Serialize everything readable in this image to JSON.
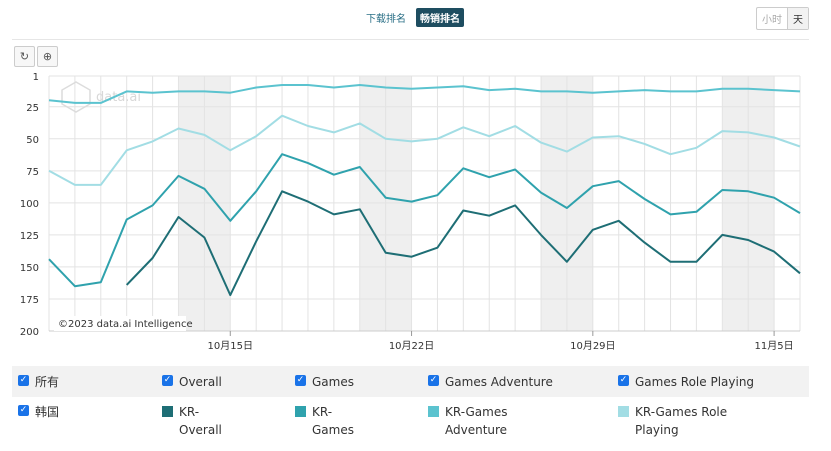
{
  "tabs": {
    "download": "下载排名",
    "revenue": "畅销排名"
  },
  "granularity": {
    "hour": "小时",
    "day": "天"
  },
  "toolbar": {
    "reset_icon": "reset-icon",
    "zoom_icon": "zoom-icon"
  },
  "copyright": "©2023 data.ai Intelligence",
  "watermark": "data.ai",
  "legend": {
    "all_label": "所有",
    "country_label": "韩国",
    "categories": [
      "Overall",
      "Games",
      "Games Adventure",
      "Games Role Playing"
    ],
    "series_labels": [
      [
        "KR-",
        "Overall"
      ],
      [
        "KR-",
        "Games"
      ],
      [
        "KR-Games",
        "Adventure"
      ],
      [
        "KR-Games Role",
        "Playing"
      ]
    ]
  },
  "chart_data": {
    "type": "line",
    "y_reversed": true,
    "ylim": [
      1,
      200
    ],
    "yticks": [
      1,
      25,
      50,
      75,
      100,
      125,
      150,
      175,
      200
    ],
    "x_labels": [
      "10月15日",
      "10月22日",
      "10月29日",
      "11月5日"
    ],
    "x_label_dates": [
      "2023-10-15",
      "2023-10-22",
      "2023-10-29",
      "2023-11-05"
    ],
    "x_start": "2023-10-08",
    "x_end": "2023-11-06",
    "weekend_bands": [
      [
        "2023-10-13",
        "2023-10-15"
      ],
      [
        "2023-10-20",
        "2023-10-22"
      ],
      [
        "2023-10-27",
        "2023-10-29"
      ],
      [
        "2023-11-03",
        "2023-11-05"
      ]
    ],
    "colors": [
      "#1e6e75",
      "#2fa2ad",
      "#5bc3cf",
      "#a2dde4"
    ],
    "series": [
      {
        "name": "KR-Overall",
        "values": [
          null,
          null,
          null,
          164,
          143,
          111,
          127,
          172,
          130,
          91,
          99,
          109,
          105,
          139,
          142,
          135,
          106,
          110,
          102,
          125,
          146,
          121,
          114,
          131,
          146,
          146,
          125,
          129,
          138,
          155
        ]
      },
      {
        "name": "KR-Games",
        "values": [
          144,
          165,
          162,
          113,
          102,
          79,
          89,
          114,
          91,
          62,
          69,
          78,
          72,
          96,
          99,
          94,
          73,
          80,
          74,
          92,
          104,
          87,
          83,
          97,
          109,
          107,
          90,
          91,
          96,
          108
        ]
      },
      {
        "name": "KR-Games Adventure",
        "values": [
          20,
          22,
          22,
          13,
          14,
          13,
          13,
          14,
          10,
          8,
          8,
          10,
          8,
          10,
          11,
          10,
          9,
          12,
          11,
          13,
          13,
          14,
          13,
          12,
          13,
          13,
          11,
          11,
          12,
          13
        ]
      },
      {
        "name": "KR-Games Role Playing",
        "values": [
          75,
          86,
          86,
          59,
          52,
          42,
          47,
          59,
          48,
          32,
          40,
          45,
          38,
          50,
          52,
          50,
          41,
          48,
          40,
          53,
          60,
          49,
          48,
          54,
          62,
          57,
          44,
          45,
          49,
          56
        ]
      }
    ]
  }
}
